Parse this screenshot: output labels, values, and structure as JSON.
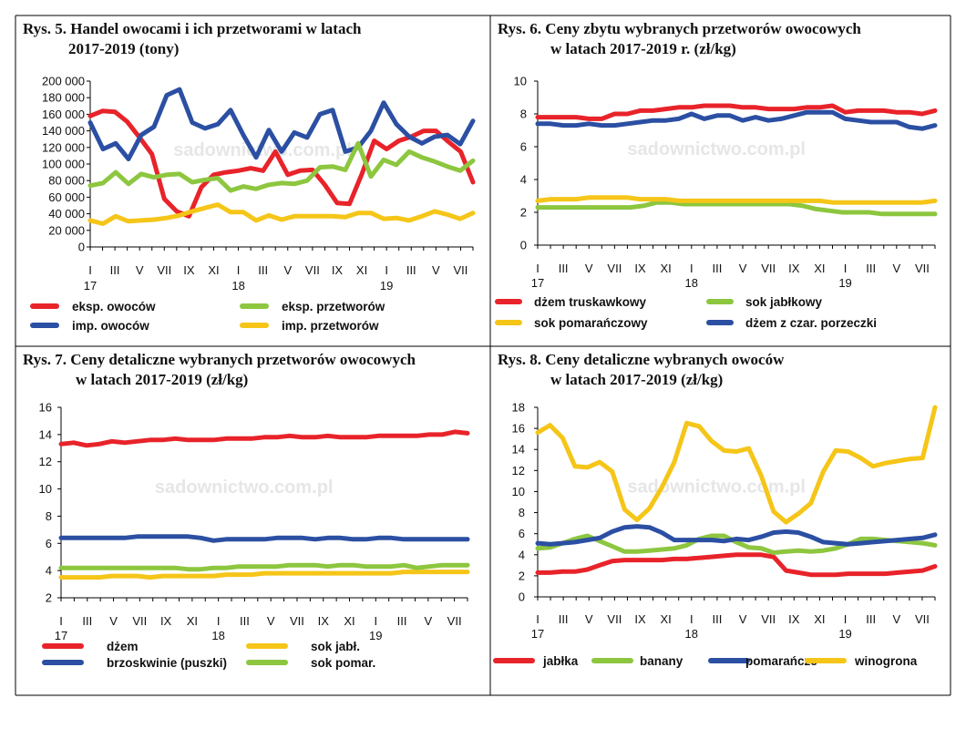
{
  "charts": [
    {
      "title_line1": "Rys. 5. Handel owocami i ich przetworami w latach",
      "title_line2": "2017-2019 (tony)",
      "chart_data": {
        "type": "line",
        "title": "Rys. 5. Handel owocami i ich przetworami w latach 2017-2019 (tony)",
        "ylim": [
          0,
          200000
        ],
        "yticks": [
          0,
          20000,
          40000,
          60000,
          80000,
          100000,
          120000,
          140000,
          160000,
          180000,
          200000
        ],
        "ytick_labels": [
          "0",
          "20 000",
          "40 000",
          "60 000",
          "80 000",
          "100 000",
          "120 000",
          "140 000",
          "160 000",
          "180 000",
          "200 000"
        ],
        "month_labels": [
          "I",
          "III",
          "V",
          "VII",
          "IX",
          "XI",
          "I",
          "III",
          "V",
          "VII",
          "IX",
          "XI",
          "I",
          "III",
          "V",
          "VII"
        ],
        "year_labels": [
          "17",
          "18",
          "19"
        ],
        "grid": false,
        "legend_position": "bottom",
        "series": [
          {
            "name": "eksp. owoców",
            "color": "#e8232a",
            "values": [
              158000,
              164000,
              163000,
              151000,
              132000,
              112000,
              58000,
              43000,
              37000,
              72000,
              87000,
              90000,
              92000,
              95000,
              92000,
              115000,
              87000,
              92000,
              93000,
              75000,
              53000,
              52000,
              88000,
              128000,
              118000,
              128000,
              133000,
              140000,
              140000,
              127000,
              115000,
              78000
            ]
          },
          {
            "name": "imp. owoców",
            "color": "#2b4fa2",
            "values": [
              150000,
              118000,
              125000,
              106000,
              135000,
              145000,
              183000,
              190000,
              150000,
              143000,
              148000,
              165000,
              135000,
              108000,
              141000,
              115000,
              138000,
              132000,
              160000,
              165000,
              115000,
              120000,
              140000,
              174000,
              148000,
              133000,
              125000,
              133000,
              135000,
              124000,
              152000
            ]
          },
          {
            "name": "eksp. przetworów",
            "color": "#8dc63f",
            "values": [
              74000,
              77000,
              90000,
              76000,
              88000,
              84000,
              87000,
              88000,
              78000,
              81000,
              83000,
              68000,
              73000,
              70000,
              75000,
              77000,
              76000,
              80000,
              96000,
              97000,
              93000,
              125000,
              85000,
              105000,
              99000,
              115000,
              108000,
              103000,
              97000,
              92000,
              104000
            ]
          },
          {
            "name": "imp. przetworów",
            "color": "#f5c518",
            "values": [
              32000,
              28000,
              37000,
              31000,
              32000,
              33000,
              35000,
              38000,
              43000,
              47000,
              51000,
              42000,
              42000,
              32000,
              38000,
              33000,
              37000,
              37000,
              37000,
              37000,
              36000,
              41000,
              41000,
              34000,
              35000,
              32000,
              37000,
              43000,
              39000,
              34000,
              41000
            ]
          }
        ]
      }
    },
    {
      "title_line1": "Rys. 6. Ceny zbytu wybranych przetworów owocowych",
      "title_line2": "w latach 2017-2019 r. (zł/kg)",
      "chart_data": {
        "type": "line",
        "title": "Rys. 6. Ceny zbytu wybranych przetworów owocowych w latach 2017-2019 r. (zł/kg)",
        "ylim": [
          0,
          10
        ],
        "yticks": [
          0,
          2,
          4,
          6,
          8,
          10
        ],
        "ytick_labels": [
          "0",
          "2",
          "4",
          "6",
          "8",
          "10"
        ],
        "month_labels": [
          "I",
          "III",
          "V",
          "VII",
          "IX",
          "XI",
          "I",
          "III",
          "V",
          "VII",
          "IX",
          "XI",
          "I",
          "III",
          "V",
          "VII"
        ],
        "year_labels": [
          "17",
          "18",
          "19"
        ],
        "grid": false,
        "legend_position": "bottom",
        "series": [
          {
            "name": "dżem truskawkowy",
            "color": "#e8232a",
            "values": [
              7.8,
              7.8,
              7.8,
              7.8,
              7.7,
              7.7,
              8.0,
              8.0,
              8.2,
              8.2,
              8.3,
              8.4,
              8.4,
              8.5,
              8.5,
              8.5,
              8.4,
              8.4,
              8.3,
              8.3,
              8.3,
              8.4,
              8.4,
              8.5,
              8.1,
              8.2,
              8.2,
              8.2,
              8.1,
              8.1,
              8.0,
              8.2
            ]
          },
          {
            "name": "sok jabłkowy",
            "color": "#8dc63f",
            "values": [
              2.3,
              2.3,
              2.3,
              2.3,
              2.3,
              2.3,
              2.3,
              2.3,
              2.4,
              2.6,
              2.6,
              2.5,
              2.5,
              2.5,
              2.5,
              2.5,
              2.5,
              2.5,
              2.5,
              2.5,
              2.4,
              2.2,
              2.1,
              2.0,
              2.0,
              2.0,
              1.9,
              1.9,
              1.9,
              1.9,
              1.9
            ]
          },
          {
            "name": "sok pomarańczowy",
            "color": "#f5c518",
            "values": [
              2.7,
              2.8,
              2.8,
              2.8,
              2.9,
              2.9,
              2.9,
              2.9,
              2.8,
              2.8,
              2.8,
              2.7,
              2.7,
              2.7,
              2.7,
              2.7,
              2.7,
              2.7,
              2.7,
              2.7,
              2.7,
              2.7,
              2.7,
              2.6,
              2.6,
              2.6,
              2.6,
              2.6,
              2.6,
              2.6,
              2.6,
              2.7
            ]
          },
          {
            "name": "dżem z czar. porzeczki",
            "color": "#2b4fa2",
            "values": [
              7.4,
              7.4,
              7.3,
              7.3,
              7.4,
              7.3,
              7.3,
              7.4,
              7.5,
              7.6,
              7.6,
              7.7,
              8.0,
              7.7,
              7.9,
              7.9,
              7.6,
              7.8,
              7.6,
              7.7,
              7.9,
              8.1,
              8.1,
              8.1,
              7.7,
              7.6,
              7.5,
              7.5,
              7.5,
              7.2,
              7.1,
              7.3
            ]
          }
        ]
      }
    },
    {
      "title_line1": "Rys. 7. Ceny detaliczne wybranych przetworów owocowych",
      "title_line2": "w latach 2017-2019 (zł/kg)",
      "chart_data": {
        "type": "line",
        "title": "Rys. 7. Ceny detaliczne wybranych przetworów owocowych w latach 2017-2019 (zł/kg)",
        "ylim": [
          2,
          16
        ],
        "yticks": [
          2,
          4,
          6,
          8,
          10,
          12,
          14,
          16
        ],
        "ytick_labels": [
          "2",
          "4",
          "6",
          "8",
          "10",
          "12",
          "14",
          "16"
        ],
        "month_labels": [
          "I",
          "III",
          "V",
          "VII",
          "IX",
          "XI",
          "I",
          "III",
          "V",
          "VII",
          "IX",
          "XI",
          "I",
          "III",
          "V",
          "VII"
        ],
        "year_labels": [
          "17",
          "18",
          "19"
        ],
        "grid": false,
        "legend_position": "bottom",
        "series": [
          {
            "name": "dżem",
            "color": "#e8232a",
            "values": [
              13.3,
              13.4,
              13.2,
              13.3,
              13.5,
              13.4,
              13.5,
              13.6,
              13.6,
              13.7,
              13.6,
              13.6,
              13.6,
              13.7,
              13.7,
              13.7,
              13.8,
              13.8,
              13.9,
              13.8,
              13.8,
              13.9,
              13.8,
              13.8,
              13.8,
              13.9,
              13.9,
              13.9,
              13.9,
              14.0,
              14.0,
              14.2,
              14.1
            ]
          },
          {
            "name": "brzoskwinie (puszki)",
            "color": "#2b4fa2",
            "values": [
              6.4,
              6.4,
              6.4,
              6.4,
              6.4,
              6.4,
              6.5,
              6.5,
              6.5,
              6.5,
              6.5,
              6.4,
              6.2,
              6.3,
              6.3,
              6.3,
              6.3,
              6.4,
              6.4,
              6.4,
              6.3,
              6.4,
              6.4,
              6.3,
              6.3,
              6.4,
              6.4,
              6.3,
              6.3,
              6.3,
              6.3,
              6.3,
              6.3
            ]
          },
          {
            "name": "sok jabł.",
            "color": "#f5c518",
            "values": [
              3.5,
              3.5,
              3.5,
              3.5,
              3.6,
              3.6,
              3.6,
              3.5,
              3.6,
              3.6,
              3.6,
              3.6,
              3.6,
              3.7,
              3.7,
              3.7,
              3.8,
              3.8,
              3.8,
              3.8,
              3.8,
              3.8,
              3.8,
              3.8,
              3.8,
              3.8,
              3.8,
              3.9,
              3.9,
              3.9,
              3.9,
              3.9,
              3.9
            ]
          },
          {
            "name": "sok pomar.",
            "color": "#8dc63f",
            "values": [
              4.2,
              4.2,
              4.2,
              4.2,
              4.2,
              4.2,
              4.2,
              4.2,
              4.2,
              4.2,
              4.1,
              4.1,
              4.2,
              4.2,
              4.3,
              4.3,
              4.3,
              4.3,
              4.4,
              4.4,
              4.4,
              4.3,
              4.4,
              4.4,
              4.3,
              4.3,
              4.3,
              4.4,
              4.2,
              4.3,
              4.4,
              4.4,
              4.4
            ]
          }
        ]
      }
    },
    {
      "title_line1": "Rys. 8. Ceny detaliczne wybranych owoców",
      "title_line2": "w latach 2017-2019 (zł/kg)",
      "chart_data": {
        "type": "line",
        "title": "Rys. 8. Ceny detaliczne wybranych owoców w latach 2017-2019 (zł/kg)",
        "ylim": [
          0,
          18
        ],
        "yticks": [
          0,
          2,
          4,
          6,
          8,
          10,
          12,
          14,
          16,
          18
        ],
        "ytick_labels": [
          "0",
          "2",
          "4",
          "6",
          "8",
          "10",
          "12",
          "14",
          "16",
          "18"
        ],
        "month_labels": [
          "I",
          "III",
          "V",
          "VII",
          "IX",
          "XI",
          "I",
          "III",
          "V",
          "VII",
          "IX",
          "XI",
          "I",
          "III",
          "V",
          "VII"
        ],
        "year_labels": [
          "17",
          "18",
          "19"
        ],
        "grid": false,
        "legend_position": "bottom",
        "series": [
          {
            "name": "jabłka",
            "color": "#e8232a",
            "values": [
              2.3,
              2.3,
              2.4,
              2.4,
              2.6,
              3.0,
              3.4,
              3.5,
              3.5,
              3.5,
              3.5,
              3.6,
              3.6,
              3.7,
              3.8,
              3.9,
              4.0,
              4.0,
              4.0,
              3.8,
              2.5,
              2.3,
              2.1,
              2.1,
              2.1,
              2.2,
              2.2,
              2.2,
              2.2,
              2.3,
              2.4,
              2.5,
              2.9
            ]
          },
          {
            "name": "banany",
            "color": "#8dc63f",
            "values": [
              4.6,
              4.7,
              5.1,
              5.5,
              5.8,
              5.3,
              4.8,
              4.3,
              4.3,
              4.4,
              4.5,
              4.6,
              4.9,
              5.5,
              5.8,
              5.8,
              5.2,
              4.7,
              4.6,
              4.2,
              4.3,
              4.4,
              4.3,
              4.4,
              4.6,
              5.0,
              5.5,
              5.5,
              5.4,
              5.3,
              5.2,
              5.1,
              4.9
            ]
          },
          {
            "name": "pomarańcze",
            "color": "#2b4fa2",
            "values": [
              5.1,
              5.0,
              5.1,
              5.2,
              5.4,
              5.6,
              6.2,
              6.6,
              6.7,
              6.6,
              6.1,
              5.4,
              5.4,
              5.4,
              5.4,
              5.3,
              5.5,
              5.4,
              5.7,
              6.1,
              6.2,
              6.1,
              5.7,
              5.2,
              5.1,
              5.0,
              5.1,
              5.2,
              5.3,
              5.4,
              5.5,
              5.6,
              5.9
            ]
          },
          {
            "name": "winogrona",
            "color": "#f5c518",
            "values": [
              15.6,
              16.3,
              15.1,
              12.4,
              12.3,
              12.8,
              11.9,
              8.3,
              7.3,
              8.4,
              10.4,
              12.8,
              16.5,
              16.2,
              14.8,
              13.9,
              13.8,
              14.1,
              11.5,
              8.1,
              7.1,
              7.9,
              8.9,
              11.9,
              13.9,
              13.8,
              13.2,
              12.4,
              12.7,
              12.9,
              13.1,
              13.2,
              18.0
            ]
          }
        ]
      }
    }
  ]
}
